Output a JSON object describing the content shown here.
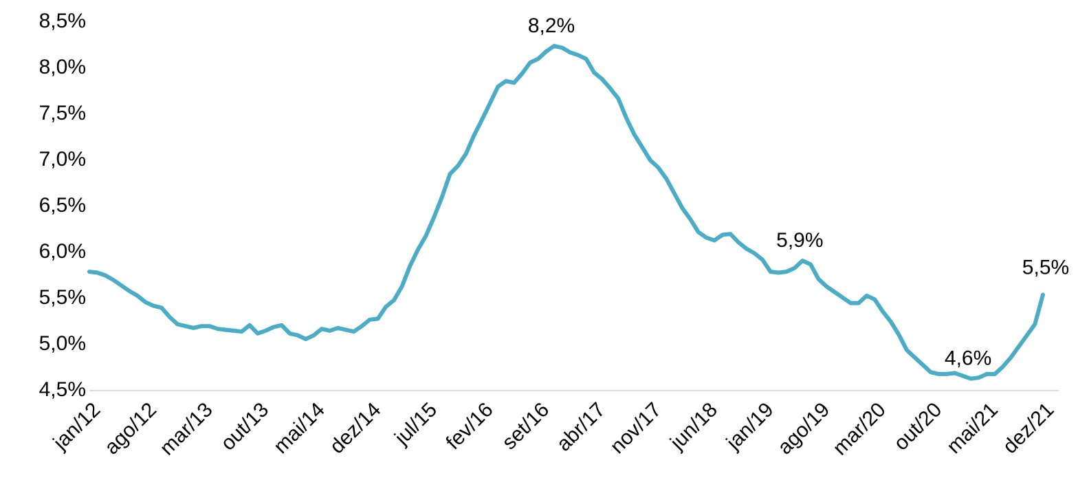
{
  "chart_data": {
    "type": "line",
    "categories": [
      "jan/12",
      null,
      null,
      null,
      null,
      null,
      null,
      "ago/12",
      null,
      null,
      null,
      null,
      null,
      null,
      "mar/13",
      null,
      null,
      null,
      null,
      null,
      null,
      "out/13",
      null,
      null,
      null,
      null,
      null,
      null,
      "mai/14",
      null,
      null,
      null,
      null,
      null,
      null,
      "dez/14",
      null,
      null,
      null,
      null,
      null,
      null,
      "jul/15",
      null,
      null,
      null,
      null,
      null,
      null,
      "fev/16",
      null,
      null,
      null,
      null,
      null,
      null,
      "set/16",
      null,
      null,
      null,
      null,
      null,
      null,
      "abr/17",
      null,
      null,
      null,
      null,
      null,
      null,
      "nov/17",
      null,
      null,
      null,
      null,
      null,
      null,
      "jun/18",
      null,
      null,
      null,
      null,
      null,
      null,
      "jan/19",
      null,
      null,
      null,
      null,
      null,
      null,
      "ago/19",
      null,
      null,
      null,
      null,
      null,
      null,
      "mar/20",
      null,
      null,
      null,
      null,
      null,
      null,
      "out/20",
      null,
      null,
      null,
      null,
      null,
      null,
      "mai/21",
      null,
      null,
      null,
      null,
      null,
      null,
      "dez/21"
    ],
    "values": [
      5.79,
      5.78,
      5.75,
      5.7,
      5.64,
      5.58,
      5.53,
      5.46,
      5.42,
      5.4,
      5.3,
      5.22,
      5.2,
      5.18,
      5.2,
      5.2,
      5.17,
      5.16,
      5.15,
      5.14,
      5.21,
      5.12,
      5.15,
      5.19,
      5.21,
      5.12,
      5.1,
      5.06,
      5.1,
      5.17,
      5.15,
      5.18,
      5.16,
      5.14,
      5.2,
      5.27,
      5.28,
      5.41,
      5.48,
      5.63,
      5.85,
      6.03,
      6.18,
      6.38,
      6.6,
      6.85,
      6.94,
      7.07,
      7.27,
      7.44,
      7.62,
      7.8,
      7.86,
      7.84,
      7.94,
      8.06,
      8.1,
      8.18,
      8.24,
      8.22,
      8.17,
      8.14,
      8.1,
      7.95,
      7.88,
      7.78,
      7.67,
      7.46,
      7.28,
      7.14,
      7.0,
      6.92,
      6.8,
      6.64,
      6.48,
      6.36,
      6.22,
      6.16,
      6.13,
      6.19,
      6.2,
      6.11,
      6.04,
      5.99,
      5.92,
      5.79,
      5.78,
      5.79,
      5.83,
      5.91,
      5.87,
      5.71,
      5.63,
      5.57,
      5.51,
      5.45,
      5.45,
      5.53,
      5.49,
      5.36,
      5.25,
      5.11,
      4.94,
      4.86,
      4.78,
      4.7,
      4.68,
      4.68,
      4.69,
      4.66,
      4.63,
      4.64,
      4.68,
      4.68,
      4.76,
      4.86,
      4.98,
      5.1,
      5.22,
      5.54
    ],
    "value_labels": [
      null,
      null,
      null,
      null,
      null,
      null,
      null,
      null,
      null,
      null,
      null,
      null,
      null,
      null,
      null,
      null,
      null,
      null,
      null,
      null,
      null,
      null,
      null,
      null,
      null,
      null,
      null,
      null,
      null,
      null,
      null,
      null,
      null,
      null,
      null,
      null,
      null,
      null,
      null,
      null,
      null,
      null,
      null,
      null,
      null,
      null,
      null,
      null,
      null,
      null,
      null,
      null,
      null,
      null,
      null,
      null,
      null,
      null,
      "8,2%",
      null,
      null,
      null,
      null,
      null,
      null,
      null,
      null,
      null,
      null,
      null,
      null,
      null,
      null,
      null,
      null,
      null,
      null,
      null,
      null,
      null,
      null,
      null,
      null,
      null,
      null,
      null,
      null,
      null,
      null,
      "5,9%",
      null,
      null,
      null,
      null,
      null,
      null,
      null,
      null,
      null,
      null,
      null,
      null,
      null,
      null,
      null,
      null,
      null,
      null,
      null,
      null,
      "4,6%",
      null,
      null,
      null,
      null,
      null,
      null,
      null,
      null,
      "5,5%"
    ],
    "color": "#4bacc6",
    "ylim": [
      4.5,
      8.5
    ],
    "yticks": [
      {
        "value": 4.5,
        "label": "4,5%"
      },
      {
        "value": 5.0,
        "label": "5,0%"
      },
      {
        "value": 5.5,
        "label": "5,5%"
      },
      {
        "value": 6.0,
        "label": "6,0%"
      },
      {
        "value": 6.5,
        "label": "6,5%"
      },
      {
        "value": 7.0,
        "label": "7,0%"
      },
      {
        "value": 7.5,
        "label": "7,5%"
      },
      {
        "value": 8.0,
        "label": "8,0%"
      },
      {
        "value": 8.5,
        "label": "8,5%"
      }
    ]
  }
}
